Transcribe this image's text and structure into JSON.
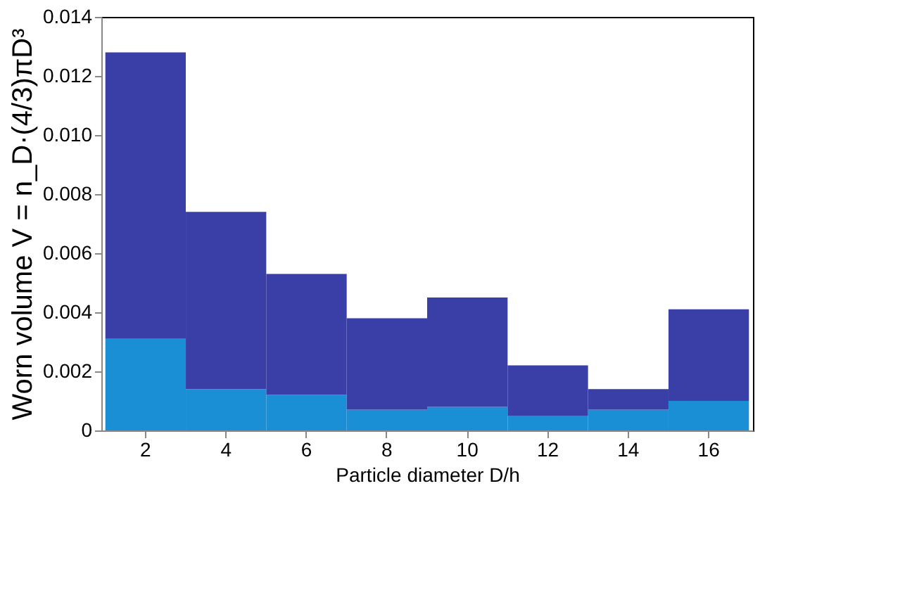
{
  "chart_data": {
    "type": "bar",
    "stacked": true,
    "xlabel": "Particle diameter D/h",
    "ylabel": "Worn volume  V = n_D·(4/3)πD³",
    "categories": [
      "2",
      "4",
      "6",
      "8",
      "10",
      "12",
      "14",
      "16"
    ],
    "series": [
      {
        "color": "#1a8fd6",
        "values": [
          0.0031,
          0.0014,
          0.0012,
          0.0007,
          0.0008,
          0.0005,
          0.0007,
          0.001
        ]
      },
      {
        "color": "#3a3fa8",
        "values": [
          0.0097,
          0.006,
          0.0041,
          0.0031,
          0.0037,
          0.0017,
          0.0007,
          0.0031
        ]
      }
    ],
    "ylim": [
      0,
      0.014
    ],
    "yticks": [
      0,
      0.002,
      0.004,
      0.006,
      0.008,
      {
        "value": 0.01,
        "label": "0.010"
      },
      0.012,
      0.014
    ],
    "grid": false,
    "legend": false
  }
}
